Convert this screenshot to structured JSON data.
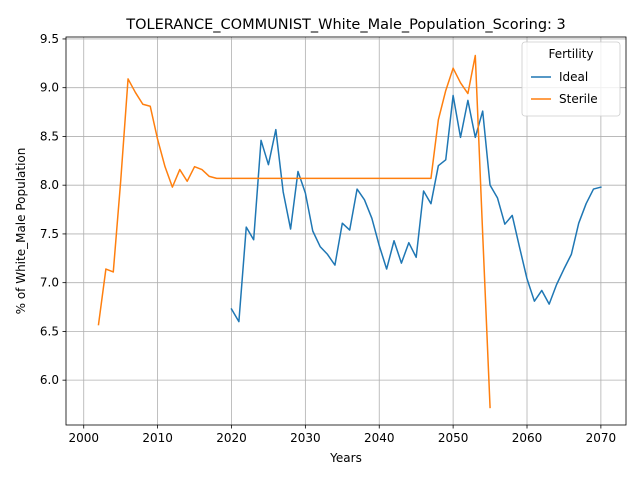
{
  "chart_data": {
    "type": "line",
    "title": "TOLERANCE_COMMUNIST_White_Male_Population_Scoring: 3",
    "xlabel": "Years",
    "ylabel": "% of White_Male Population",
    "xlim": [
      1997.6,
      2073.4
    ],
    "ylim": [
      5.54,
      9.52
    ],
    "xticks": [
      2000,
      2010,
      2020,
      2030,
      2040,
      2050,
      2060,
      2070
    ],
    "yticks": [
      6.0,
      6.5,
      7.0,
      7.5,
      8.0,
      8.5,
      9.0,
      9.5
    ],
    "ytick_labels": [
      "6.0",
      "6.5",
      "7.0",
      "7.5",
      "8.0",
      "8.5",
      "9.0",
      "9.5"
    ],
    "grid": true,
    "legend": {
      "title": "Fertility",
      "placement": "top-right"
    },
    "series": [
      {
        "name": "Ideal",
        "color": "#1f77b4",
        "x": [
          2020,
          2021,
          2022,
          2023,
          2024,
          2025,
          2026,
          2027,
          2028,
          2029,
          2030,
          2031,
          2032,
          2033,
          2034,
          2035,
          2036,
          2037,
          2038,
          2039,
          2040,
          2041,
          2042,
          2043,
          2044,
          2045,
          2046,
          2047,
          2048,
          2049,
          2050,
          2051,
          2052,
          2053,
          2054,
          2055,
          2056,
          2057,
          2058,
          2059,
          2060,
          2061,
          2062,
          2063,
          2064,
          2065,
          2066,
          2067,
          2068,
          2069,
          2070
        ],
        "values": [
          6.73,
          6.6,
          7.57,
          7.44,
          8.46,
          8.21,
          8.57,
          7.93,
          7.55,
          8.14,
          7.92,
          7.53,
          7.37,
          7.29,
          7.18,
          7.61,
          7.54,
          7.96,
          7.85,
          7.66,
          7.38,
          7.14,
          7.43,
          7.2,
          7.41,
          7.26,
          7.94,
          7.81,
          8.2,
          8.26,
          8.92,
          8.49,
          8.87,
          8.49,
          8.76,
          8.0,
          7.87,
          7.6,
          7.69,
          7.36,
          7.04,
          6.81,
          6.92,
          6.78,
          6.98,
          7.14,
          7.29,
          7.61,
          7.81,
          7.96,
          7.98
        ]
      },
      {
        "name": "Sterile",
        "color": "#ff7f0e",
        "x": [
          2002,
          2003,
          2004,
          2005,
          2006,
          2007,
          2008,
          2009,
          2010,
          2011,
          2012,
          2013,
          2014,
          2015,
          2016,
          2017,
          2018,
          2019,
          2020,
          2021,
          2022,
          2023,
          2024,
          2025,
          2026,
          2027,
          2028,
          2029,
          2030,
          2031,
          2032,
          2033,
          2034,
          2035,
          2036,
          2037,
          2038,
          2039,
          2040,
          2041,
          2042,
          2043,
          2044,
          2045,
          2046,
          2047,
          2048,
          2049,
          2050,
          2051,
          2052,
          2053,
          2054,
          2055
        ],
        "values": [
          6.57,
          7.14,
          7.11,
          8.04,
          9.09,
          8.95,
          8.83,
          8.81,
          8.47,
          8.19,
          7.98,
          8.16,
          8.04,
          8.19,
          8.16,
          8.09,
          8.07,
          8.07,
          8.07,
          8.07,
          8.07,
          8.07,
          8.07,
          8.07,
          8.07,
          8.07,
          8.07,
          8.07,
          8.07,
          8.07,
          8.07,
          8.07,
          8.07,
          8.07,
          8.07,
          8.07,
          8.07,
          8.07,
          8.07,
          8.07,
          8.07,
          8.07,
          8.07,
          8.07,
          8.07,
          8.07,
          8.67,
          8.97,
          9.2,
          9.05,
          8.94,
          9.33,
          7.5,
          5.72
        ]
      }
    ]
  }
}
